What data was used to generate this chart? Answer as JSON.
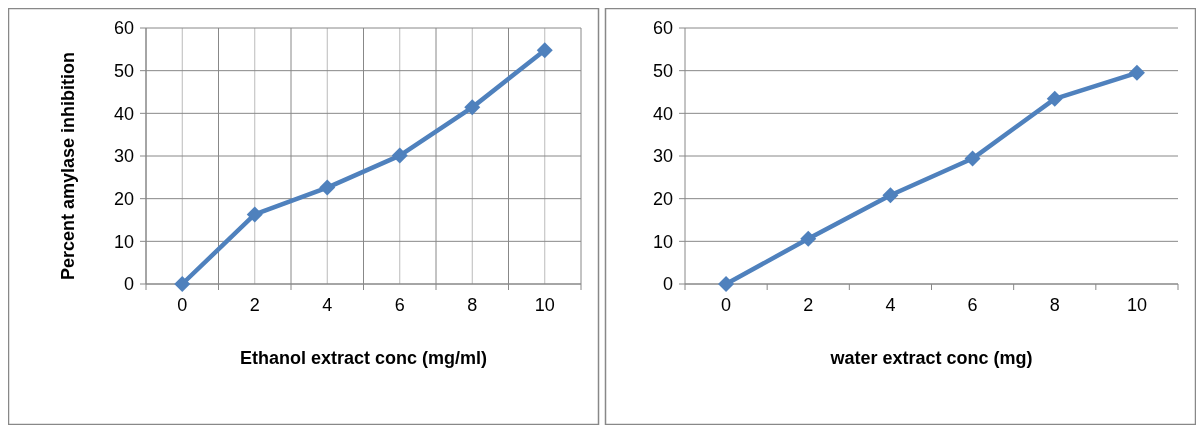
{
  "chart_data": [
    {
      "type": "line",
      "xlabel": "Ethanol extract conc (mg/ml)",
      "ylabel": "Percent amylase inhibition",
      "categories": [
        "0",
        "2",
        "4",
        "6",
        "8",
        "10"
      ],
      "series": [
        {
          "color": "#4f81bd",
          "values": [
            0,
            16.3,
            22.6,
            30.1,
            41.4,
            54.8
          ]
        }
      ],
      "ylim": [
        0,
        60
      ],
      "yticks": [
        0,
        10,
        20,
        30,
        40,
        50,
        60
      ],
      "grid": true,
      "marker": "diamond"
    },
    {
      "type": "line",
      "xlabel": "water extract conc (mg)",
      "categories": [
        "0",
        "2",
        "4",
        "6",
        "8",
        "10"
      ],
      "series": [
        {
          "color": "#4f81bd",
          "values": [
            0,
            10.6,
            20.8,
            29.4,
            43.4,
            49.5
          ]
        }
      ],
      "ylim": [
        0,
        60
      ],
      "yticks": [
        0,
        10,
        20,
        30,
        40,
        50,
        60
      ],
      "grid": "y",
      "marker": "diamond"
    }
  ]
}
